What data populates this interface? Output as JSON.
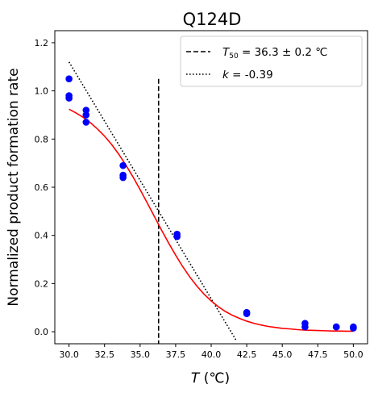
{
  "chart_data": {
    "type": "scatter",
    "title": "Q124D",
    "xlabel_var": "T",
    "xlabel_unit": " (℃)",
    "ylabel": "Normalized product formation rate",
    "xlim": [
      29.0,
      51.0
    ],
    "ylim": [
      -0.05,
      1.25
    ],
    "xticks": [
      30.0,
      32.5,
      35.0,
      37.5,
      40.0,
      42.5,
      45.0,
      47.5,
      50.0
    ],
    "xtick_labels": [
      "30.0",
      "32.5",
      "35.0",
      "37.5",
      "40.0",
      "42.5",
      "45.0",
      "47.5",
      "50.0"
    ],
    "yticks": [
      0.0,
      0.2,
      0.4,
      0.6,
      0.8,
      1.0,
      1.2
    ],
    "ytick_labels": [
      "0.0",
      "0.2",
      "0.4",
      "0.6",
      "0.8",
      "1.0",
      "1.2"
    ],
    "grid": false,
    "legend_position": "top-right",
    "points": {
      "color": "#0000ff",
      "x": [
        30.0,
        30.0,
        30.0,
        31.2,
        31.2,
        31.2,
        33.8,
        33.8,
        33.8,
        37.6,
        37.6,
        42.5,
        42.5,
        46.6,
        46.6,
        48.8,
        48.8,
        50.0,
        50.0
      ],
      "y": [
        1.05,
        0.98,
        0.97,
        0.92,
        0.9,
        0.87,
        0.69,
        0.65,
        0.64,
        0.405,
        0.395,
        0.08,
        0.075,
        0.035,
        0.02,
        0.02,
        0.02,
        0.02,
        0.015
      ]
    },
    "fit_curve": {
      "color": "#ff0000",
      "x": [
        30.0,
        30.5,
        31.0,
        31.5,
        32.0,
        32.5,
        33.0,
        33.5,
        34.0,
        34.5,
        35.0,
        35.5,
        36.0,
        36.5,
        37.0,
        37.5,
        38.0,
        38.5,
        39.0,
        39.5,
        40.0,
        40.5,
        41.0,
        41.5,
        42.0,
        42.5,
        43.0,
        43.5,
        44.0,
        44.5,
        45.0,
        45.5,
        46.0,
        46.5,
        47.0,
        47.5,
        48.0,
        48.5,
        49.0,
        49.5,
        50.0
      ],
      "y": [
        0.924,
        0.908,
        0.89,
        0.868,
        0.842,
        0.812,
        0.777,
        0.737,
        0.692,
        0.643,
        0.59,
        0.535,
        0.479,
        0.423,
        0.369,
        0.318,
        0.27,
        0.227,
        0.189,
        0.156,
        0.128,
        0.104,
        0.084,
        0.068,
        0.055,
        0.044,
        0.035,
        0.028,
        0.022,
        0.018,
        0.014,
        0.012,
        0.009,
        0.007,
        0.006,
        0.005,
        0.004,
        0.003,
        0.003,
        0.002,
        0.002
      ]
    },
    "t50_line": {
      "x": 36.3,
      "y_top": 1.05,
      "style": "dashed",
      "color": "#000000"
    },
    "slope_line": {
      "x": [
        30.0,
        41.8
      ],
      "y": [
        1.12,
        -0.04
      ],
      "style": "dotted",
      "color": "#000000"
    },
    "legend": [
      {
        "style": "dashed",
        "var": "T",
        "sub": "50",
        "text": " = 36.3 ± 0.2 ℃"
      },
      {
        "style": "dotted",
        "var": "k",
        "sub": "",
        "text": " = -0.39"
      }
    ]
  }
}
